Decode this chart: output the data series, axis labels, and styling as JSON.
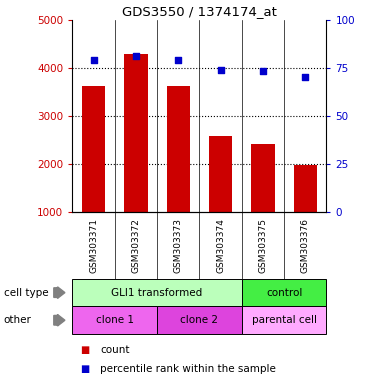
{
  "title": "GDS3550 / 1374174_at",
  "samples": [
    "GSM303371",
    "GSM303372",
    "GSM303373",
    "GSM303374",
    "GSM303375",
    "GSM303376"
  ],
  "counts": [
    3620,
    4280,
    3620,
    2580,
    2400,
    1980
  ],
  "percentile_ranks": [
    79,
    81,
    79,
    74,
    73,
    70
  ],
  "ylim_left": [
    1000,
    5000
  ],
  "ylim_right": [
    0,
    100
  ],
  "yticks_left": [
    1000,
    2000,
    3000,
    4000,
    5000
  ],
  "yticks_right": [
    0,
    25,
    50,
    75,
    100
  ],
  "bar_color": "#cc0000",
  "dot_color": "#0000cc",
  "bar_bottom": 1000,
  "ct_groups": [
    {
      "text": "GLI1 transformed",
      "start": 0,
      "end": 4,
      "color": "#bbffbb"
    },
    {
      "text": "control",
      "start": 4,
      "end": 6,
      "color": "#44ee44"
    }
  ],
  "ot_groups": [
    {
      "text": "clone 1",
      "start": 0,
      "end": 2,
      "color": "#ee66ee"
    },
    {
      "text": "clone 2",
      "start": 2,
      "end": 4,
      "color": "#dd44dd"
    },
    {
      "text": "parental cell",
      "start": 4,
      "end": 6,
      "color": "#ffaaff"
    }
  ],
  "legend_count_label": "count",
  "legend_pct_label": "percentile rank within the sample",
  "tick_color_left": "#cc0000",
  "tick_color_right": "#0000cc",
  "background_color": "#ffffff",
  "sample_row_color": "#cccccc"
}
